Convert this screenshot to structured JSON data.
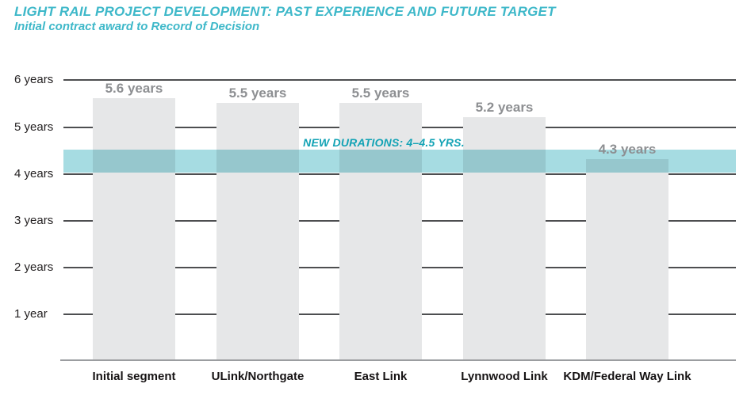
{
  "header": {
    "title": "LIGHT RAIL PROJECT DEVELOPMENT: PAST EXPERIENCE AND FUTURE TARGET",
    "subtitle": "Initial contract award to Record of Decision"
  },
  "colors": {
    "accent-teal": "#3eb8c9",
    "band-teal": "#a6dce2",
    "band-label-teal": "#13a3b5",
    "bar-gray": "#e6e7e8",
    "value-label-gray": "#8d8f92",
    "gridline": "#4d4e50",
    "baseline-gray": "#9b9da0",
    "axis-text": "#232021",
    "x-label-black": "#161314"
  },
  "chart_data": {
    "type": "bar",
    "title": "LIGHT RAIL PROJECT DEVELOPMENT: PAST EXPERIENCE AND FUTURE TARGET",
    "subtitle": "Initial contract award to Record of Decision",
    "categories": [
      "Initial segment",
      "ULink/Northgate",
      "East Link",
      "Lynnwood Link",
      "KDM/Federal Way Link"
    ],
    "values": [
      5.6,
      5.5,
      5.5,
      5.2,
      4.3
    ],
    "value_labels": [
      "5.6 years",
      "5.5 years",
      "5.5 years",
      "5.2 years",
      "4.3 years"
    ],
    "unit": "years",
    "xlabel": "",
    "ylabel": "",
    "ylim": [
      0,
      6.5
    ],
    "grid": "horizontal",
    "legend_position": "none",
    "y_ticks": [
      {
        "value": 1,
        "label": "1 year"
      },
      {
        "value": 2,
        "label": "2 years"
      },
      {
        "value": 3,
        "label": "3 years"
      },
      {
        "value": 4,
        "label": "4 years"
      },
      {
        "value": 5,
        "label": "5 years"
      },
      {
        "value": 6,
        "label": "6 years"
      }
    ],
    "annotation_band": {
      "from": 4,
      "to": 4.5,
      "label": "NEW DURATIONS: 4–4.5 YRS."
    }
  }
}
